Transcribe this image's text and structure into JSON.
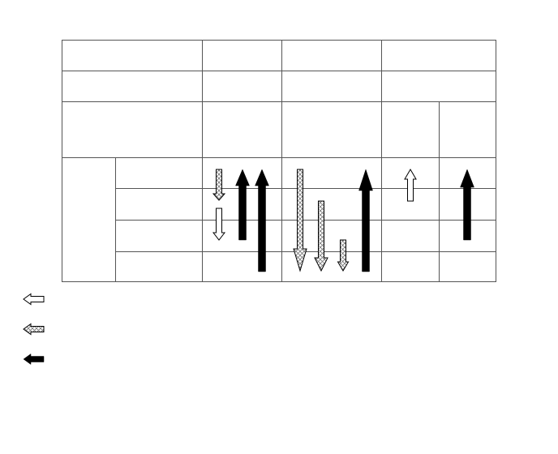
{
  "diagram": {
    "colors": {
      "grid_line": "#555555",
      "outline": "#000000",
      "fill_solid": "#000000",
      "fill_hatched": "#b5b5b5",
      "fill_open": "#ffffff"
    },
    "legend": [
      {
        "style": "open",
        "direction": "left"
      },
      {
        "style": "hatched",
        "direction": "left"
      },
      {
        "style": "solid",
        "direction": "left"
      }
    ],
    "arrows": [
      {
        "group": 1,
        "style": "hatched",
        "direction": "down",
        "span_rows": "1"
      },
      {
        "group": 1,
        "style": "open",
        "direction": "down",
        "span_rows": "2"
      },
      {
        "group": 1,
        "style": "solid",
        "direction": "up",
        "span_rows": "1-3"
      },
      {
        "group": 1,
        "style": "solid",
        "direction": "up",
        "span_rows": "1-4"
      },
      {
        "group": 2,
        "style": "hatched",
        "direction": "down",
        "span_rows": "1-4"
      },
      {
        "group": 2,
        "style": "hatched",
        "direction": "down",
        "span_rows": "2-4"
      },
      {
        "group": 2,
        "style": "hatched",
        "direction": "down",
        "span_rows": "3-4"
      },
      {
        "group": 2,
        "style": "solid",
        "direction": "up",
        "span_rows": "1-4"
      },
      {
        "group": 3,
        "style": "open",
        "direction": "up",
        "span_rows": "1"
      },
      {
        "group": 4,
        "style": "solid",
        "direction": "up",
        "span_rows": "1-3"
      }
    ]
  }
}
